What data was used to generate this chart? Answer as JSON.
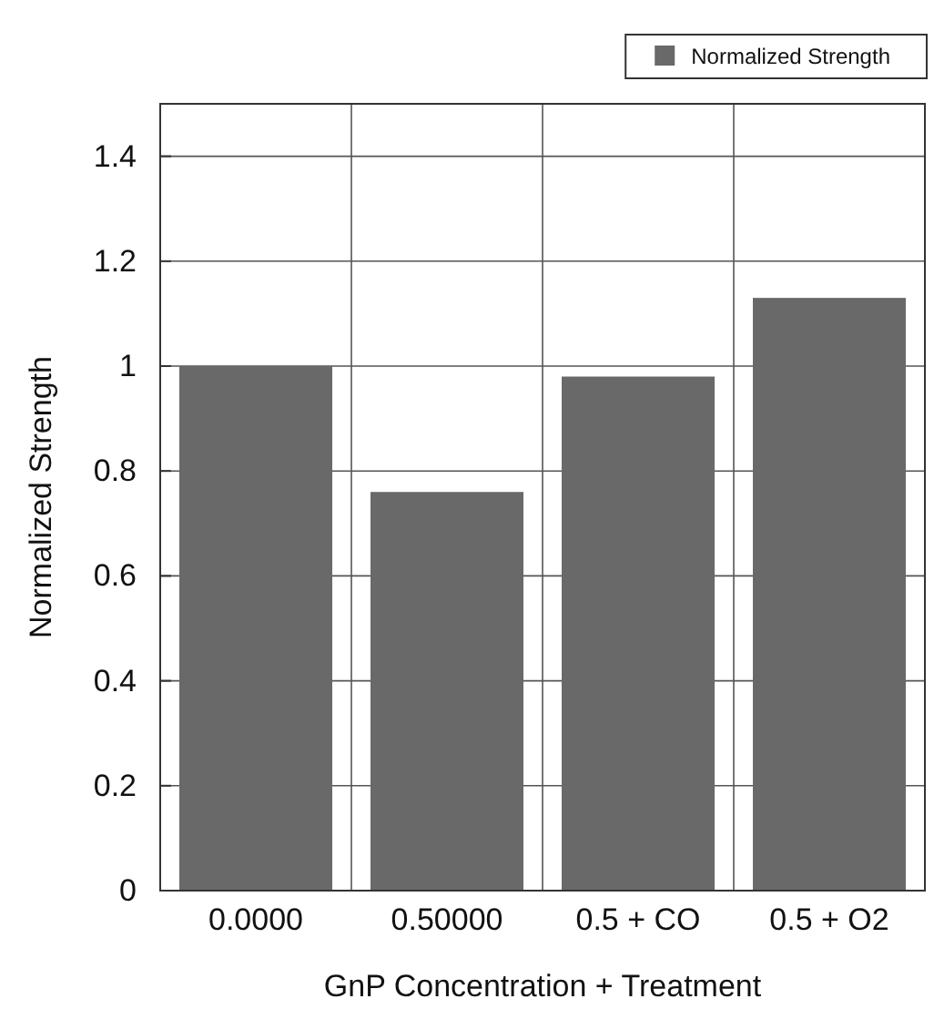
{
  "chart_data": {
    "type": "bar",
    "xlabel": "GnP Concentration + Treatment",
    "ylabel": "Normalized Strength",
    "categories": [
      "0.0000",
      "0.50000",
      "0.5 + CO",
      "0.5 + O2"
    ],
    "series": [
      {
        "name": "Normalized Strength",
        "color": "#696969",
        "values": [
          1.0,
          0.76,
          0.98,
          1.13
        ]
      }
    ],
    "ylim": [
      0,
      1.5
    ],
    "yticks": [
      0,
      0.2,
      0.4,
      0.6,
      0.8,
      1,
      1.2,
      1.4
    ],
    "grid": true,
    "legend": "top right"
  }
}
